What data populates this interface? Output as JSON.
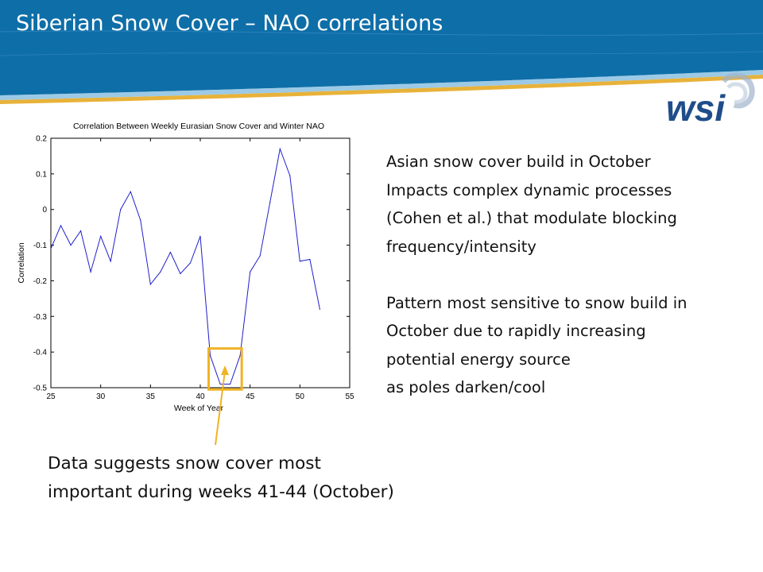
{
  "slide": {
    "title": "Siberian Snow Cover – NAO correlations",
    "header_color": "#0e6ea8",
    "accent_color": "#e8b23a"
  },
  "logo": {
    "text": "wsi",
    "color": "#1f4d8a"
  },
  "text_block": {
    "paragraph1": [
      "Asian snow cover build in October",
      "Impacts complex dynamic processes",
      "(Cohen et al.) that modulate blocking",
      "frequency/intensity"
    ],
    "paragraph2": [
      "Pattern most sensitive to snow build in",
      "October due to rapidly increasing",
      "potential energy source",
      "as poles darken/cool"
    ]
  },
  "callout": {
    "lines": [
      "Data suggests snow cover most",
      "important during weeks 41-44 (October)"
    ],
    "box_color": "#f0b323"
  },
  "chart_data": {
    "type": "line",
    "title": "Correlation Between Weekly Eurasian Snow Cover and Winter NAO",
    "xlabel": "Week of Year",
    "ylabel": "Correlation",
    "xlim": [
      25,
      55
    ],
    "ylim": [
      -0.5,
      0.2
    ],
    "xticks": [
      "25",
      "30",
      "35",
      "40",
      "45",
      "50",
      "55"
    ],
    "yticks": [
      "0.2",
      "0.1",
      "0",
      "-0.1",
      "-0.2",
      "-0.3",
      "-0.4",
      "-0.5"
    ],
    "grid": false,
    "line_color": "#1f1fcc",
    "series": [
      {
        "x": [
          25,
          26,
          27,
          28,
          29,
          30,
          31,
          32,
          33,
          34,
          35,
          36,
          37,
          38,
          39,
          40,
          41,
          42,
          43,
          44,
          45,
          46,
          47,
          48,
          49,
          50,
          51,
          52
        ],
        "values": [
          -0.11,
          -0.045,
          -0.1,
          -0.06,
          -0.175,
          -0.075,
          -0.145,
          0.0,
          0.05,
          -0.03,
          -0.21,
          -0.175,
          -0.12,
          -0.18,
          -0.15,
          -0.075,
          -0.41,
          -0.49,
          -0.49,
          -0.41,
          -0.175,
          -0.13,
          0.02,
          0.17,
          0.095,
          -0.145,
          -0.14,
          -0.28
        ]
      }
    ],
    "highlight": {
      "x_range": [
        41,
        44
      ]
    }
  }
}
